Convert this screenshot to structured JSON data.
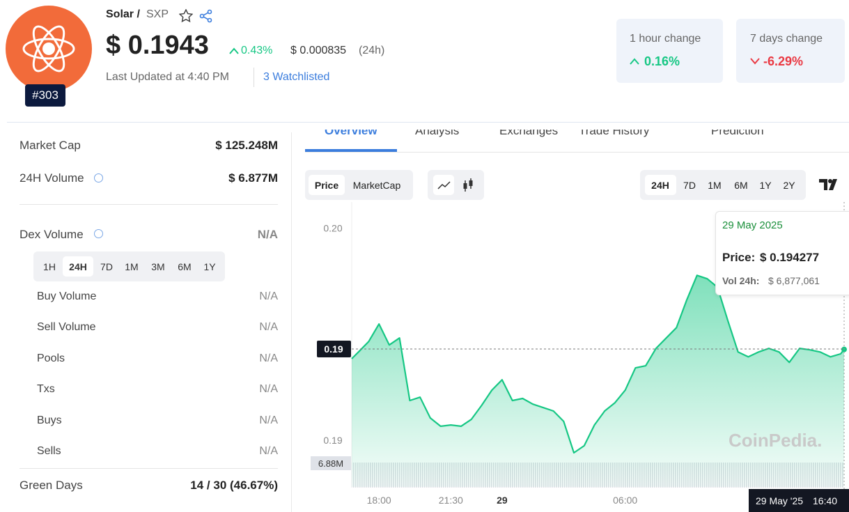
{
  "header": {
    "name": "Solar /",
    "symbol": "SXP",
    "rank": "#303",
    "price": "$ 0.1943",
    "change_24h": "0.43%",
    "price_btc": "$ 0.000835",
    "price_btc_period": "(24h)",
    "last_updated": "Last Updated at 4:40 PM",
    "watchlisted": "3 Watchlisted"
  },
  "change_cards": [
    {
      "label": "1 hour change",
      "value": "0.16%"
    },
    {
      "label": "7 days change",
      "value": "-6.29%"
    }
  ],
  "stats": [
    {
      "label": "Market Cap",
      "value": "$ 125.248M"
    },
    {
      "label": "24H Volume",
      "value": "$ 6.877M"
    }
  ],
  "dex": {
    "label": "Dex Volume",
    "value": "N/A",
    "periods": [
      "1H",
      "24H",
      "7D",
      "1M",
      "3M",
      "6M",
      "1Y"
    ],
    "rows": [
      {
        "label": "Buy Volume",
        "value": "N/A"
      },
      {
        "label": "Sell Volume",
        "value": "N/A"
      },
      {
        "label": "Pools",
        "value": "N/A"
      },
      {
        "label": "Txs",
        "value": "N/A"
      },
      {
        "label": "Buys",
        "value": "N/A"
      },
      {
        "label": "Sells",
        "value": "N/A"
      }
    ]
  },
  "green_days": {
    "label": "Green Days",
    "value": "14 / 30 (46.67%)"
  },
  "tabs": [
    "Overview",
    "Analysis",
    "Exchanges",
    "Trade History",
    "Prediction"
  ],
  "chart_toolbar": {
    "modes": [
      "Price",
      "MarketCap"
    ],
    "ranges": [
      "24H",
      "7D",
      "1M",
      "6M",
      "1Y",
      "2Y"
    ]
  },
  "tooltip": {
    "date": "29 May 2025",
    "price_label": "Price:",
    "price": "$ 0.194277",
    "volume_label": "Vol 24h:",
    "volume": "$ 6,877,061"
  },
  "watermark": "CoinPedia.",
  "chart_data": {
    "type": "area",
    "color": "#16c784",
    "x": [
      16.67,
      17,
      17.5,
      18,
      18.5,
      19,
      19.5,
      20,
      20.5,
      21,
      21.5,
      22,
      22.5,
      23,
      23.5,
      24,
      24.5,
      25,
      25.5,
      26,
      26.5,
      27,
      27.5,
      28,
      28.5,
      29,
      29.5,
      30,
      30.5,
      31,
      31.5,
      32,
      32.5,
      33,
      33.5,
      34,
      34.5,
      35,
      35.5,
      36,
      36.5,
      37,
      37.5,
      38,
      38.5,
      39,
      39.5,
      40,
      40.5,
      40.67
    ],
    "values": [
      0.19384,
      0.19416,
      0.19466,
      0.19548,
      0.19449,
      0.19482,
      0.19187,
      0.19203,
      0.19105,
      0.19066,
      0.19072,
      0.19066,
      0.19098,
      0.19164,
      0.19236,
      0.19285,
      0.19187,
      0.19197,
      0.1917,
      0.19154,
      0.19138,
      0.19089,
      0.18941,
      0.18974,
      0.19072,
      0.19138,
      0.19177,
      0.19236,
      0.19341,
      0.19351,
      0.19433,
      0.19482,
      0.19531,
      0.19662,
      0.19777,
      0.19761,
      0.19721,
      0.19564,
      0.19416,
      0.19393,
      0.19416,
      0.19433,
      0.19416,
      0.19367,
      0.19433,
      0.19426,
      0.19416,
      0.19393,
      0.19407,
      0.19428
    ],
    "xlim": [
      16.67,
      40.67
    ],
    "ylim": [
      0.1878,
      0.2009
    ],
    "xticks": [
      {
        "value": 18,
        "label": "18:00"
      },
      {
        "value": 21.5,
        "label": "21:30"
      },
      {
        "value": 24,
        "label": "29"
      },
      {
        "value": 30,
        "label": "06:00"
      }
    ],
    "yticks": [
      {
        "value": 0.2,
        "label": "0.20"
      },
      {
        "value": 0.19,
        "label": "0.19"
      }
    ],
    "current_price": {
      "value": 0.1943,
      "label": "0.19"
    },
    "volume_label": "6.88M",
    "crosshair_date": "29 May '25",
    "crosshair_time": "16:40"
  }
}
